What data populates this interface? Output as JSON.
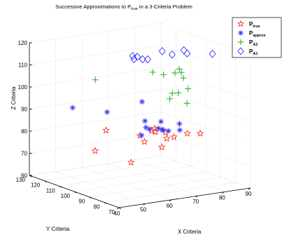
{
  "chart_data": {
    "type": "scatter3d",
    "title": "Successive Approximations to P",
    "title_subscript": "true",
    "title_suffix": " in a 3-Criteria Problem",
    "xlabel": "X Criteria",
    "ylabel": "Y Criteria",
    "zlabel": "Z Criteria",
    "xlim": [
      40,
      90
    ],
    "ylim": [
      70,
      130
    ],
    "zlim": [
      60,
      120
    ],
    "xticks": [
      40,
      50,
      60,
      70,
      80,
      90
    ],
    "yticks": [
      70,
      80,
      90,
      100,
      110,
      120,
      130
    ],
    "zticks": [
      60,
      70,
      80,
      90,
      100,
      110,
      120
    ],
    "grid": true,
    "legend_position": "top-right",
    "series": [
      {
        "key": "true",
        "label_main": "P",
        "label_sub": "true",
        "marker": "star",
        "color": "#ff3333",
        "points": [
          [
            55.5,
            106.0,
            83.5
          ],
          [
            59.0,
            89.5,
            84.5
          ],
          [
            64.0,
            90.5,
            85.5
          ],
          [
            67.5,
            94.5,
            85.0
          ],
          [
            50.5,
            104.5,
            75.5
          ],
          [
            63.0,
            93.5,
            80.0
          ],
          [
            70.0,
            98.5,
            82.0
          ],
          [
            72.5,
            96.0,
            82.0
          ],
          [
            71.5,
            93.5,
            80.0
          ],
          [
            74.5,
            94.0,
            80.0
          ],
          [
            60.5,
            98.0,
            70.0
          ],
          [
            64.5,
            84.5,
            79.5
          ],
          [
            72.5,
            81.5,
            85.0
          ],
          [
            76.0,
            79.0,
            85.0
          ]
        ]
      },
      {
        "key": "approx",
        "label_main": "P",
        "label_sub": "approx",
        "marker": "asterisk",
        "color": "#3333ff",
        "points": [
          [
            48.5,
            116.0,
            92.5
          ],
          [
            54.5,
            103.5,
            92.5
          ],
          [
            67.5,
            103.0,
            95.0
          ],
          [
            65.5,
            97.5,
            88.0
          ],
          [
            67.0,
            102.5,
            80.0
          ],
          [
            71.0,
            96.5,
            87.0
          ],
          [
            73.5,
            102.5,
            82.0
          ],
          [
            68.0,
            99.0,
            83.5
          ],
          [
            71.5,
            96.5,
            83.0
          ],
          [
            71.0,
            91.5,
            84.0
          ],
          [
            65.5,
            85.5,
            87.0
          ],
          [
            65.0,
            96.0,
            85.5
          ],
          [
            70.5,
            83.0,
            86.5
          ],
          [
            73.5,
            88.5,
            87.5
          ]
        ]
      },
      {
        "key": "A2",
        "label_main": "P",
        "label_sub": "A2",
        "marker": "plus",
        "color": "#22aa22",
        "points": [
          [
            54.0,
            110.5,
            105.5
          ],
          [
            71.0,
            102.0,
            108.0
          ],
          [
            74.5,
            101.0,
            106.5
          ],
          [
            78.0,
            99.5,
            107.0
          ],
          [
            80.5,
            101.0,
            108.0
          ],
          [
            81.0,
            100.5,
            106.5
          ],
          [
            81.5,
            100.0,
            104.0
          ],
          [
            83.0,
            99.5,
            99.0
          ],
          [
            77.0,
            99.5,
            98.0
          ],
          [
            79.0,
            99.0,
            98.0
          ],
          [
            75.5,
            98.5,
            96.0
          ],
          [
            80.0,
            95.0,
            94.0
          ]
        ]
      },
      {
        "key": "A1",
        "label_main": "P",
        "label_sub": "A1",
        "marker": "diamond",
        "color": "#3333ff",
        "points": [
          [
            65.0,
            104.0,
            114.5
          ],
          [
            64.5,
            104.0,
            116.0
          ],
          [
            66.0,
            103.5,
            115.5
          ],
          [
            68.0,
            103.5,
            114.0
          ],
          [
            68.5,
            101.0,
            114.5
          ],
          [
            76.0,
            104.5,
            116.0
          ],
          [
            82.5,
            101.5,
            116.0
          ],
          [
            79.5,
            104.0,
            114.0
          ],
          [
            83.5,
            101.0,
            114.5
          ],
          [
            90.0,
            95.5,
            114.5
          ]
        ]
      }
    ]
  }
}
